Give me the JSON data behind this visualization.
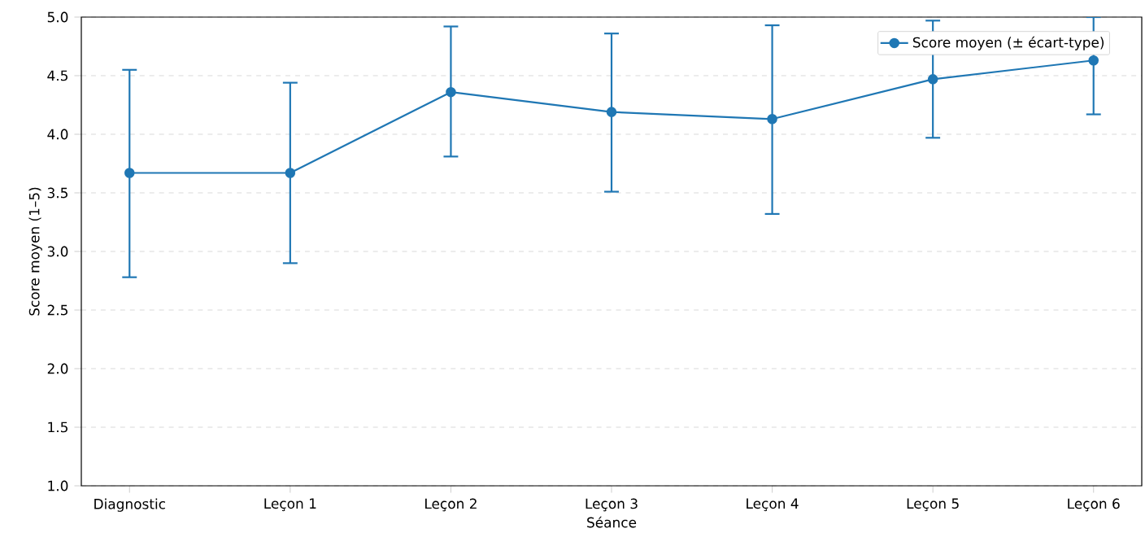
{
  "chart_data": {
    "type": "line",
    "xlabel": "Séance",
    "ylabel": "Score moyen (1–5)",
    "categories": [
      "Diagnostic",
      "Leçon 1",
      "Leçon 2",
      "Leçon 3",
      "Leçon 4",
      "Leçon 5",
      "Leçon 6"
    ],
    "series": [
      {
        "name": "Score moyen (± écart-type)",
        "color": "#1f77b4",
        "values": [
          3.67,
          3.67,
          4.36,
          4.19,
          4.13,
          4.47,
          4.63
        ],
        "errors": [
          [
            2.78,
            4.55
          ],
          [
            2.9,
            4.44
          ],
          [
            3.81,
            4.92
          ],
          [
            3.51,
            4.86
          ],
          [
            3.32,
            4.93
          ],
          [
            3.97,
            4.97
          ],
          [
            4.17,
            5.0
          ]
        ]
      }
    ],
    "ylim": [
      1.0,
      5.0
    ],
    "yticks": [
      {
        "value": 1.0,
        "label": "1.0"
      },
      {
        "value": 1.5,
        "label": "1.5"
      },
      {
        "value": 2.0,
        "label": "2.0"
      },
      {
        "value": 2.5,
        "label": "2.5"
      },
      {
        "value": 3.0,
        "label": "3.0"
      },
      {
        "value": 3.5,
        "label": "3.5"
      },
      {
        "value": 4.0,
        "label": "4.0"
      },
      {
        "value": 4.5,
        "label": "4.5"
      },
      {
        "value": 5.0,
        "label": "5.0"
      }
    ],
    "grid": "y",
    "legend": "top right",
    "marker": "circle",
    "line_style": "solid"
  }
}
